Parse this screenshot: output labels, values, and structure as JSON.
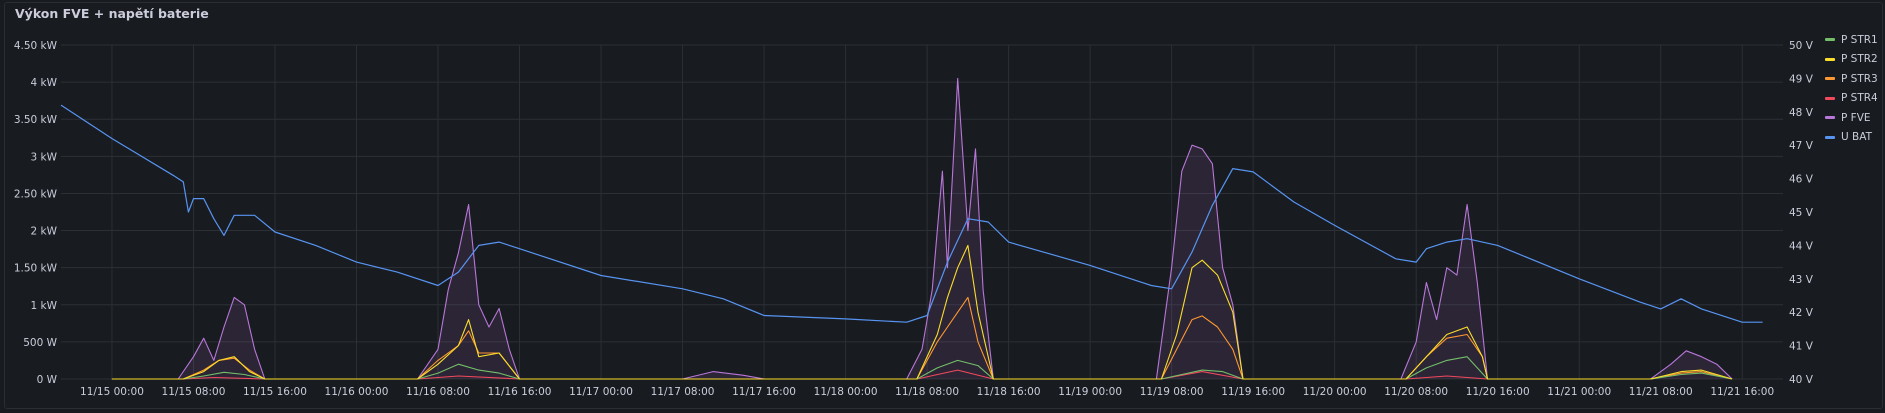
{
  "panel": {
    "title": "Výkon FVE + napětí baterie"
  },
  "chart_data": {
    "type": "line",
    "title": "Výkon FVE + napětí baterie",
    "x_ticks": [
      "11/15 00:00",
      "11/15 08:00",
      "11/15 16:00",
      "11/16 00:00",
      "11/16 08:00",
      "11/16 16:00",
      "11/17 00:00",
      "11/17 08:00",
      "11/17 16:00",
      "11/18 00:00",
      "11/18 08:00",
      "11/18 16:00",
      "11/19 00:00",
      "11/19 08:00",
      "11/19 16:00",
      "11/20 00:00",
      "11/20 08:00",
      "11/20 16:00",
      "11/21 00:00",
      "11/21 08:00",
      "11/21 16:00"
    ],
    "xlim": [
      "11/14 19:00",
      "11/21 20:00"
    ],
    "y_left": {
      "unit": "W",
      "ylim": [
        0,
        4500
      ],
      "tick_labels": [
        "0 W",
        "500 W",
        "1 kW",
        "1.50 kW",
        "2 kW",
        "2.50 kW",
        "3 kW",
        "3.50 kW",
        "4 kW",
        "4.50 kW"
      ]
    },
    "y_right": {
      "unit": "V",
      "ylim": [
        40,
        50
      ],
      "tick_labels": [
        "40 V",
        "41 V",
        "42 V",
        "43 V",
        "44 V",
        "45 V",
        "46 V",
        "47 V",
        "48 V",
        "49 V",
        "50 V"
      ]
    },
    "grid": true,
    "legend_position": "right",
    "series": [
      {
        "name": "P STR1",
        "color": "#73bf69",
        "axis": "left",
        "points": [
          [
            "11/15 00:00",
            0
          ],
          [
            "11/15 07:00",
            0
          ],
          [
            "11/15 09:00",
            40
          ],
          [
            "11/15 11:00",
            90
          ],
          [
            "11/15 13:00",
            60
          ],
          [
            "11/15 15:00",
            0
          ],
          [
            "11/16 06:00",
            0
          ],
          [
            "11/16 08:00",
            80
          ],
          [
            "11/16 10:00",
            200
          ],
          [
            "11/16 12:00",
            120
          ],
          [
            "11/16 14:00",
            80
          ],
          [
            "11/16 16:00",
            0
          ],
          [
            "11/18 07:00",
            0
          ],
          [
            "11/18 09:00",
            150
          ],
          [
            "11/18 11:00",
            250
          ],
          [
            "11/18 13:00",
            180
          ],
          [
            "11/18 14:30",
            0
          ],
          [
            "11/19 07:00",
            0
          ],
          [
            "11/19 09:00",
            60
          ],
          [
            "11/19 11:00",
            120
          ],
          [
            "11/19 13:00",
            100
          ],
          [
            "11/19 15:00",
            0
          ],
          [
            "11/20 07:00",
            0
          ],
          [
            "11/20 09:00",
            150
          ],
          [
            "11/20 11:00",
            250
          ],
          [
            "11/20 13:00",
            300
          ],
          [
            "11/20 15:00",
            0
          ],
          [
            "11/21 07:00",
            0
          ],
          [
            "11/21 10:00",
            60
          ],
          [
            "11/21 12:00",
            80
          ],
          [
            "11/21 15:00",
            0
          ]
        ]
      },
      {
        "name": "P STR2",
        "color": "#fade2a",
        "axis": "left",
        "points": [
          [
            "11/15 00:00",
            0
          ],
          [
            "11/15 07:00",
            0
          ],
          [
            "11/15 09:00",
            100
          ],
          [
            "11/15 10:30",
            250
          ],
          [
            "11/15 12:00",
            300
          ],
          [
            "11/15 13:30",
            100
          ],
          [
            "11/15 15:00",
            0
          ],
          [
            "11/16 06:00",
            0
          ],
          [
            "11/16 08:00",
            200
          ],
          [
            "11/16 10:00",
            450
          ],
          [
            "11/16 11:00",
            800
          ],
          [
            "11/16 12:00",
            300
          ],
          [
            "11/16 14:00",
            350
          ],
          [
            "11/16 16:00",
            0
          ],
          [
            "11/18 07:00",
            0
          ],
          [
            "11/18 09:00",
            600
          ],
          [
            "11/18 10:00",
            1100
          ],
          [
            "11/18 11:00",
            1500
          ],
          [
            "11/18 12:00",
            1800
          ],
          [
            "11/18 13:00",
            900
          ],
          [
            "11/18 14:30",
            0
          ],
          [
            "11/19 07:00",
            0
          ],
          [
            "11/19 08:30",
            600
          ],
          [
            "11/19 10:00",
            1500
          ],
          [
            "11/19 11:00",
            1600
          ],
          [
            "11/19 12:30",
            1400
          ],
          [
            "11/19 14:00",
            900
          ],
          [
            "11/19 15:00",
            0
          ],
          [
            "11/20 07:00",
            0
          ],
          [
            "11/20 09:00",
            300
          ],
          [
            "11/20 11:00",
            600
          ],
          [
            "11/20 13:00",
            700
          ],
          [
            "11/20 14:30",
            300
          ],
          [
            "11/20 15:00",
            0
          ],
          [
            "11/21 07:00",
            0
          ],
          [
            "11/21 10:00",
            100
          ],
          [
            "11/21 12:00",
            120
          ],
          [
            "11/21 15:00",
            0
          ]
        ]
      },
      {
        "name": "P STR3",
        "color": "#ff9830",
        "axis": "left",
        "points": [
          [
            "11/15 00:00",
            0
          ],
          [
            "11/15 07:00",
            0
          ],
          [
            "11/15 09:00",
            120
          ],
          [
            "11/15 10:30",
            250
          ],
          [
            "11/15 12:00",
            280
          ],
          [
            "11/15 13:30",
            120
          ],
          [
            "11/15 15:00",
            0
          ],
          [
            "11/16 06:00",
            0
          ],
          [
            "11/16 08:00",
            250
          ],
          [
            "11/16 10:00",
            450
          ],
          [
            "11/16 11:00",
            650
          ],
          [
            "11/16 12:00",
            350
          ],
          [
            "11/16 14:00",
            350
          ],
          [
            "11/16 16:00",
            0
          ],
          [
            "11/18 07:00",
            0
          ],
          [
            "11/18 09:00",
            500
          ],
          [
            "11/18 10:00",
            700
          ],
          [
            "11/18 11:00",
            900
          ],
          [
            "11/18 12:00",
            1100
          ],
          [
            "11/18 13:00",
            500
          ],
          [
            "11/18 14:30",
            0
          ],
          [
            "11/19 07:00",
            0
          ],
          [
            "11/19 08:30",
            400
          ],
          [
            "11/19 10:00",
            800
          ],
          [
            "11/19 11:00",
            850
          ],
          [
            "11/19 12:30",
            700
          ],
          [
            "11/19 14:00",
            400
          ],
          [
            "11/19 15:00",
            0
          ],
          [
            "11/20 07:00",
            0
          ],
          [
            "11/20 09:00",
            300
          ],
          [
            "11/20 11:00",
            550
          ],
          [
            "11/20 13:00",
            600
          ],
          [
            "11/20 14:30",
            300
          ],
          [
            "11/20 15:00",
            0
          ],
          [
            "11/21 07:00",
            0
          ],
          [
            "11/21 10:00",
            80
          ],
          [
            "11/21 12:00",
            100
          ],
          [
            "11/21 15:00",
            0
          ]
        ]
      },
      {
        "name": "P STR4",
        "color": "#f2495c",
        "axis": "left",
        "points": [
          [
            "11/15 00:00",
            0
          ],
          [
            "11/15 07:00",
            0
          ],
          [
            "11/15 10:00",
            20
          ],
          [
            "11/15 15:00",
            0
          ],
          [
            "11/16 06:00",
            0
          ],
          [
            "11/16 10:00",
            40
          ],
          [
            "11/16 16:00",
            0
          ],
          [
            "11/18 07:00",
            0
          ],
          [
            "11/18 11:00",
            120
          ],
          [
            "11/18 14:30",
            0
          ],
          [
            "11/19 07:00",
            0
          ],
          [
            "11/19 11:00",
            100
          ],
          [
            "11/19 15:00",
            0
          ],
          [
            "11/20 07:00",
            0
          ],
          [
            "11/20 11:00",
            40
          ],
          [
            "11/20 15:00",
            0
          ]
        ]
      },
      {
        "name": "P FVE",
        "color": "#b877d9",
        "axis": "left",
        "fill": true,
        "points": [
          [
            "11/15 00:00",
            0
          ],
          [
            "11/15 06:30",
            0
          ],
          [
            "11/15 08:00",
            300
          ],
          [
            "11/15 09:00",
            550
          ],
          [
            "11/15 10:00",
            250
          ],
          [
            "11/15 11:00",
            700
          ],
          [
            "11/15 12:00",
            1100
          ],
          [
            "11/15 13:00",
            1000
          ],
          [
            "11/15 14:00",
            400
          ],
          [
            "11/15 15:00",
            0
          ],
          [
            "11/16 06:00",
            0
          ],
          [
            "11/16 08:00",
            400
          ],
          [
            "11/16 09:00",
            1200
          ],
          [
            "11/16 10:00",
            1700
          ],
          [
            "11/16 11:00",
            2350
          ],
          [
            "11/16 12:00",
            1000
          ],
          [
            "11/16 13:00",
            700
          ],
          [
            "11/16 14:00",
            950
          ],
          [
            "11/16 15:00",
            400
          ],
          [
            "11/16 16:00",
            0
          ],
          [
            "11/17 08:00",
            0
          ],
          [
            "11/17 11:00",
            100
          ],
          [
            "11/17 14:00",
            50
          ],
          [
            "11/17 16:00",
            0
          ],
          [
            "11/18 06:00",
            0
          ],
          [
            "11/18 07:30",
            400
          ],
          [
            "11/18 08:30",
            1200
          ],
          [
            "11/18 09:30",
            2800
          ],
          [
            "11/18 10:00",
            1500
          ],
          [
            "11/18 11:00",
            4050
          ],
          [
            "11/18 12:00",
            2000
          ],
          [
            "11/18 12:45",
            3100
          ],
          [
            "11/18 13:30",
            1200
          ],
          [
            "11/18 14:30",
            0
          ],
          [
            "11/19 06:30",
            0
          ],
          [
            "11/19 08:00",
            1500
          ],
          [
            "11/19 09:00",
            2800
          ],
          [
            "11/19 10:00",
            3150
          ],
          [
            "11/19 11:00",
            3100
          ],
          [
            "11/19 12:00",
            2900
          ],
          [
            "11/19 13:00",
            1500
          ],
          [
            "11/19 14:00",
            1000
          ],
          [
            "11/19 15:00",
            0
          ],
          [
            "11/20 06:30",
            0
          ],
          [
            "11/20 08:00",
            500
          ],
          [
            "11/20 09:00",
            1300
          ],
          [
            "11/20 10:00",
            800
          ],
          [
            "11/20 11:00",
            1500
          ],
          [
            "11/20 12:00",
            1400
          ],
          [
            "11/20 13:00",
            2350
          ],
          [
            "11/20 14:00",
            1300
          ],
          [
            "11/20 15:00",
            0
          ],
          [
            "11/21 07:00",
            0
          ],
          [
            "11/21 09:00",
            200
          ],
          [
            "11/21 10:30",
            380
          ],
          [
            "11/21 12:00",
            300
          ],
          [
            "11/21 13:30",
            200
          ],
          [
            "11/21 15:00",
            0
          ]
        ]
      },
      {
        "name": "U BAT",
        "color": "#5794f2",
        "axis": "right",
        "points": [
          [
            "11/14 19:00",
            48.2
          ],
          [
            "11/15 00:00",
            47.2
          ],
          [
            "11/15 06:00",
            46.1
          ],
          [
            "11/15 07:00",
            45.9
          ],
          [
            "11/15 07:30",
            45.0
          ],
          [
            "11/15 08:00",
            45.4
          ],
          [
            "11/15 09:00",
            45.4
          ],
          [
            "11/15 10:00",
            44.8
          ],
          [
            "11/15 11:00",
            44.3
          ],
          [
            "11/15 12:00",
            44.9
          ],
          [
            "11/15 14:00",
            44.9
          ],
          [
            "11/15 16:00",
            44.4
          ],
          [
            "11/15 20:00",
            44.0
          ],
          [
            "11/16 00:00",
            43.5
          ],
          [
            "11/16 04:00",
            43.2
          ],
          [
            "11/16 08:00",
            42.8
          ],
          [
            "11/16 10:00",
            43.2
          ],
          [
            "11/16 12:00",
            44.0
          ],
          [
            "11/16 14:00",
            44.1
          ],
          [
            "11/16 16:00",
            43.9
          ],
          [
            "11/17 00:00",
            43.1
          ],
          [
            "11/17 08:00",
            42.7
          ],
          [
            "11/17 12:00",
            42.4
          ],
          [
            "11/17 16:00",
            41.9
          ],
          [
            "11/18 00:00",
            41.8
          ],
          [
            "11/18 06:00",
            41.7
          ],
          [
            "11/18 08:00",
            41.9
          ],
          [
            "11/18 10:00",
            43.5
          ],
          [
            "11/18 12:00",
            44.8
          ],
          [
            "11/18 14:00",
            44.7
          ],
          [
            "11/18 16:00",
            44.1
          ],
          [
            "11/19 00:00",
            43.4
          ],
          [
            "11/19 06:00",
            42.8
          ],
          [
            "11/19 08:00",
            42.7
          ],
          [
            "11/19 10:00",
            43.8
          ],
          [
            "11/19 12:00",
            45.2
          ],
          [
            "11/19 14:00",
            46.3
          ],
          [
            "11/19 16:00",
            46.2
          ],
          [
            "11/19 20:00",
            45.3
          ],
          [
            "11/20 00:00",
            44.6
          ],
          [
            "11/20 06:00",
            43.6
          ],
          [
            "11/20 08:00",
            43.5
          ],
          [
            "11/20 09:00",
            43.9
          ],
          [
            "11/20 11:00",
            44.1
          ],
          [
            "11/20 13:00",
            44.2
          ],
          [
            "11/20 16:00",
            44.0
          ],
          [
            "11/21 00:00",
            43.0
          ],
          [
            "11/21 06:00",
            42.3
          ],
          [
            "11/21 08:00",
            42.1
          ],
          [
            "11/21 10:00",
            42.4
          ],
          [
            "11/21 12:00",
            42.1
          ],
          [
            "11/21 16:00",
            41.7
          ],
          [
            "11/21 18:00",
            41.7
          ]
        ]
      }
    ]
  }
}
